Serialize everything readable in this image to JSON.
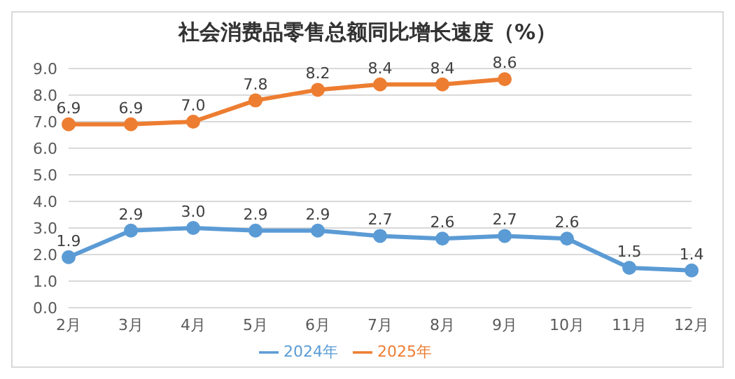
{
  "chart_data": {
    "type": "line",
    "title": "社会消费品零售总额同比增长速度（%）",
    "categories": [
      "2月",
      "3月",
      "4月",
      "5月",
      "6月",
      "7月",
      "8月",
      "9月",
      "10月",
      "11月",
      "12月"
    ],
    "series": [
      {
        "name": "2024年",
        "color": "#5b9bd5",
        "values": [
          1.9,
          2.9,
          3.0,
          2.9,
          2.9,
          2.7,
          2.6,
          2.7,
          2.6,
          1.5,
          1.4
        ],
        "value_labels": [
          "1.9",
          "2.9",
          "3.0",
          "2.9",
          "2.9",
          "2.7",
          "2.6",
          "2.7",
          "2.6",
          "1.5",
          "1.4"
        ]
      },
      {
        "name": "2025年",
        "color": "#ed7d31",
        "values": [
          6.9,
          6.9,
          7.0,
          7.8,
          8.2,
          8.4,
          8.4,
          8.6,
          null,
          null,
          null
        ],
        "value_labels": [
          "6.9",
          "6.9",
          "7.0",
          "7.8",
          "8.2",
          "8.4",
          "8.4",
          "8.6",
          null,
          null,
          null
        ]
      }
    ],
    "ylim": [
      0,
      9
    ],
    "yticks": [
      {
        "value": 0,
        "label": "0.0"
      },
      {
        "value": 1,
        "label": "1.0"
      },
      {
        "value": 2,
        "label": "2.0"
      },
      {
        "value": 3,
        "label": "3.0"
      },
      {
        "value": 4,
        "label": "4.0"
      },
      {
        "value": 5,
        "label": "5.0"
      },
      {
        "value": 6,
        "label": "6.0"
      },
      {
        "value": 7,
        "label": "7.0"
      },
      {
        "value": 8,
        "label": "8.0"
      },
      {
        "value": 9,
        "label": "9.0"
      }
    ],
    "grid": "y",
    "legend": "bottom",
    "marker": "circle",
    "line_style": "solid"
  }
}
